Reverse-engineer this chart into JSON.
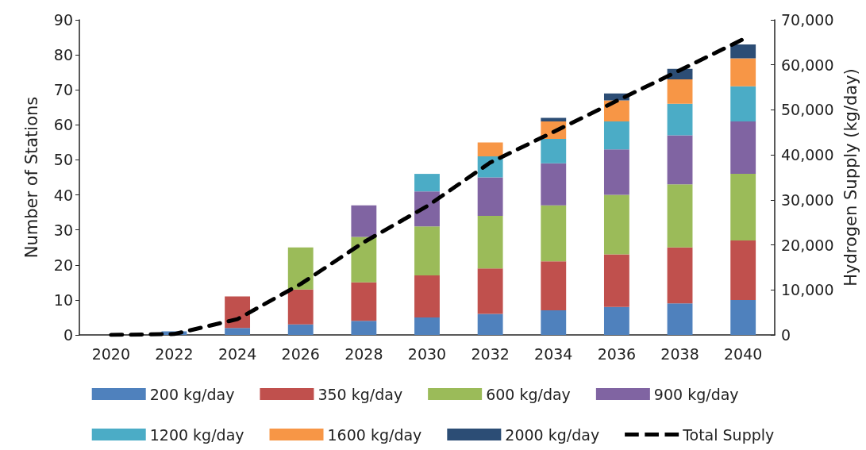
{
  "chart_data": {
    "type": "bar",
    "stacked": true,
    "categories": [
      "2020",
      "2022",
      "2024",
      "2026",
      "2028",
      "2030",
      "2032",
      "2034",
      "2036",
      "2038",
      "2040"
    ],
    "ylabel": "Number of Stations",
    "y2label": "Hydrogen Supply (kg/day)",
    "ylim": [
      0,
      90
    ],
    "yticks": [
      0,
      10,
      20,
      30,
      40,
      50,
      60,
      70,
      80,
      90
    ],
    "y2lim": [
      0,
      70000
    ],
    "y2ticks": [
      {
        "value": 0,
        "label": "0"
      },
      {
        "value": 10000,
        "label": "10,000"
      },
      {
        "value": 20000,
        "label": "20,000"
      },
      {
        "value": 30000,
        "label": "30,000"
      },
      {
        "value": 40000,
        "label": "40,000"
      },
      {
        "value": 50000,
        "label": "50,000"
      },
      {
        "value": 60000,
        "label": "60,000"
      },
      {
        "value": 70000,
        "label": "70,000"
      }
    ],
    "grid": false,
    "legend": "bottom",
    "series": [
      {
        "name": "200 kg/day",
        "color": "#4f81bd",
        "values": [
          0,
          1,
          2,
          3,
          4,
          5,
          6,
          7,
          8,
          9,
          10
        ]
      },
      {
        "name": "350 kg/day",
        "color": "#c0504d",
        "values": [
          0,
          0,
          9,
          10,
          11,
          12,
          13,
          14,
          15,
          16,
          17
        ]
      },
      {
        "name": "600 kg/day",
        "color": "#9bbb59",
        "values": [
          0,
          0,
          0,
          12,
          13,
          14,
          15,
          16,
          17,
          18,
          19
        ]
      },
      {
        "name": "900 kg/day",
        "color": "#8064a2",
        "values": [
          0,
          0,
          0,
          0,
          9,
          10,
          11,
          12,
          13,
          14,
          15
        ]
      },
      {
        "name": "1200 kg/day",
        "color": "#4bacc6",
        "values": [
          0,
          0,
          0,
          0,
          0,
          5,
          6,
          7,
          8,
          9,
          10
        ]
      },
      {
        "name": "1600 kg/day",
        "color": "#f79646",
        "values": [
          0,
          0,
          0,
          0,
          0,
          0,
          4,
          5,
          6,
          7,
          8
        ]
      },
      {
        "name": "2000 kg/day",
        "color": "#2c4d75",
        "values": [
          0,
          0,
          0,
          0,
          0,
          0,
          0,
          1,
          2,
          3,
          4
        ]
      },
      {
        "name": "Total Supply",
        "type": "line",
        "axis": "y2",
        "color": "#000000",
        "line_style": "dashed",
        "marker": "none",
        "values": [
          0,
          200,
          3500,
          11300,
          20600,
          28600,
          38300,
          45100,
          52000,
          58800,
          65700
        ]
      }
    ]
  }
}
